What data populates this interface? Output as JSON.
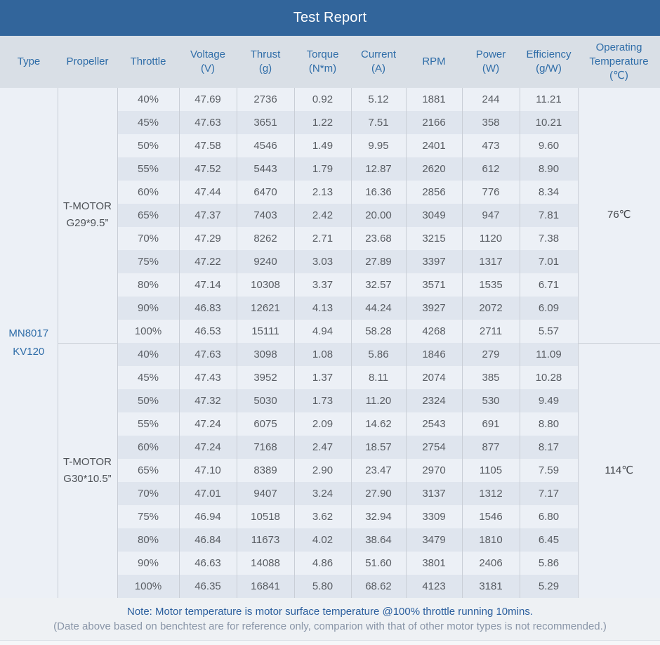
{
  "title": "Test Report",
  "colors": {
    "title_bar_bg": "#32659B",
    "title_text": "#FFFFFF",
    "header_bg": "#D9DFE6",
    "header_text": "#2F6DA8",
    "row_light": "#ECF0F6",
    "row_dark": "#DFE5EE",
    "border": "#C9CED6",
    "cell_text": "#595D63",
    "type_text": "#2F6DA8",
    "note_line1": "#2B5F9E",
    "note_line2": "#8A96A8"
  },
  "table": {
    "columns": [
      {
        "key": "type",
        "label": "Type"
      },
      {
        "key": "propeller",
        "label": "Propeller"
      },
      {
        "key": "throttle",
        "label": "Throttle"
      },
      {
        "key": "voltage",
        "label": "Voltage\n(V)"
      },
      {
        "key": "thrust",
        "label": "Thrust\n(g)"
      },
      {
        "key": "torque",
        "label": "Torque\n(N*m)"
      },
      {
        "key": "current",
        "label": "Current\n(A)"
      },
      {
        "key": "rpm",
        "label": "RPM"
      },
      {
        "key": "power",
        "label": "Power\n(W)"
      },
      {
        "key": "efficiency",
        "label": "Efficiency\n(g/W)"
      },
      {
        "key": "operating_temperature",
        "label": "Operating\nTemperature\n(℃)"
      }
    ],
    "type": "MN8017\nKV120",
    "sections": [
      {
        "propeller": "T-MOTOR\nG29*9.5”",
        "operating_temperature": "76℃",
        "rows": [
          [
            "40%",
            "47.69",
            "2736",
            "0.92",
            "5.12",
            "1881",
            "244",
            "11.21"
          ],
          [
            "45%",
            "47.63",
            "3651",
            "1.22",
            "7.51",
            "2166",
            "358",
            "10.21"
          ],
          [
            "50%",
            "47.58",
            "4546",
            "1.49",
            "9.95",
            "2401",
            "473",
            "9.60"
          ],
          [
            "55%",
            "47.52",
            "5443",
            "1.79",
            "12.87",
            "2620",
            "612",
            "8.90"
          ],
          [
            "60%",
            "47.44",
            "6470",
            "2.13",
            "16.36",
            "2856",
            "776",
            "8.34"
          ],
          [
            "65%",
            "47.37",
            "7403",
            "2.42",
            "20.00",
            "3049",
            "947",
            "7.81"
          ],
          [
            "70%",
            "47.29",
            "8262",
            "2.71",
            "23.68",
            "3215",
            "1120",
            "7.38"
          ],
          [
            "75%",
            "47.22",
            "9240",
            "3.03",
            "27.89",
            "3397",
            "1317",
            "7.01"
          ],
          [
            "80%",
            "47.14",
            "10308",
            "3.37",
            "32.57",
            "3571",
            "1535",
            "6.71"
          ],
          [
            "90%",
            "46.83",
            "12621",
            "4.13",
            "44.24",
            "3927",
            "2072",
            "6.09"
          ],
          [
            "100%",
            "46.53",
            "15111",
            "4.94",
            "58.28",
            "4268",
            "2711",
            "5.57"
          ]
        ]
      },
      {
        "propeller": "T-MOTOR\nG30*10.5”",
        "operating_temperature": "114℃",
        "rows": [
          [
            "40%",
            "47.63",
            "3098",
            "1.08",
            "5.86",
            "1846",
            "279",
            "11.09"
          ],
          [
            "45%",
            "47.43",
            "3952",
            "1.37",
            "8.11",
            "2074",
            "385",
            "10.28"
          ],
          [
            "50%",
            "47.32",
            "5030",
            "1.73",
            "11.20",
            "2324",
            "530",
            "9.49"
          ],
          [
            "55%",
            "47.24",
            "6075",
            "2.09",
            "14.62",
            "2543",
            "691",
            "8.80"
          ],
          [
            "60%",
            "47.24",
            "7168",
            "2.47",
            "18.57",
            "2754",
            "877",
            "8.17"
          ],
          [
            "65%",
            "47.10",
            "8389",
            "2.90",
            "23.47",
            "2970",
            "1105",
            "7.59"
          ],
          [
            "70%",
            "47.01",
            "9407",
            "3.24",
            "27.90",
            "3137",
            "1312",
            "7.17"
          ],
          [
            "75%",
            "46.94",
            "10518",
            "3.62",
            "32.94",
            "3309",
            "1546",
            "6.80"
          ],
          [
            "80%",
            "46.84",
            "11673",
            "4.02",
            "38.64",
            "3479",
            "1810",
            "6.45"
          ],
          [
            "90%",
            "46.63",
            "14088",
            "4.86",
            "51.60",
            "3801",
            "2406",
            "5.86"
          ],
          [
            "100%",
            "46.35",
            "16841",
            "5.80",
            "68.62",
            "4123",
            "3181",
            "5.29"
          ]
        ]
      }
    ]
  },
  "note": {
    "line1": "Note: Motor temperature is motor surface temperature @100% throttle running 10mins.",
    "line2": "(Date above based on benchtest are for reference only, comparion with that of other motor types is not recommended.)"
  }
}
